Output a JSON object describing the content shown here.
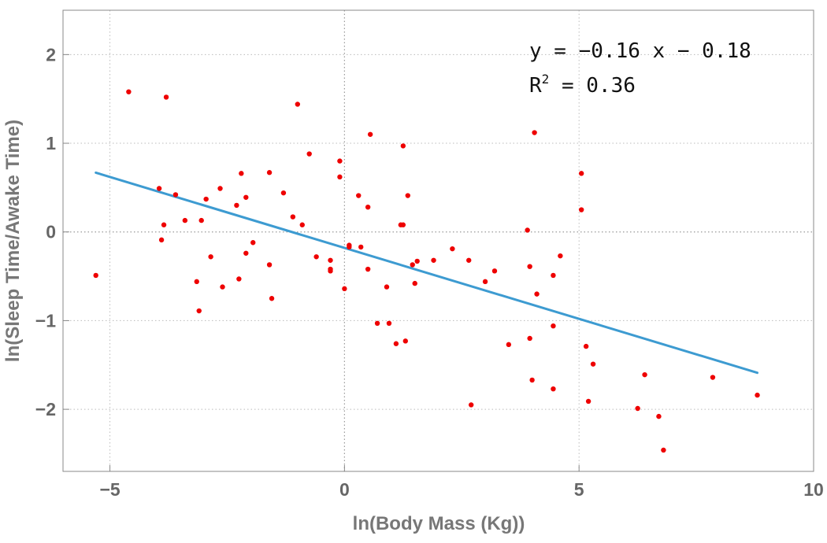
{
  "chart_data": {
    "type": "scatter",
    "title": "",
    "xlabel": "ln(Body Mass (Kg))",
    "ylabel": "ln(Sleep Time/Awake Time)",
    "xlim": [
      -6,
      10
    ],
    "ylim": [
      -2.7,
      2.5
    ],
    "x_ticks": [
      -5,
      0,
      5,
      10
    ],
    "x_tick_labels": [
      "−5",
      "0",
      "5",
      "10"
    ],
    "y_ticks": [
      -2,
      -1,
      0,
      1,
      2
    ],
    "y_tick_labels": [
      "−2",
      "−1",
      "0",
      "1",
      "2"
    ],
    "grid": true,
    "colors": {
      "points": "#ee0000",
      "fit_line": "#3d9bd1"
    },
    "fit": {
      "slope": -0.16,
      "intercept": -0.18,
      "x_range": [
        -5.3,
        8.8
      ]
    },
    "annotation": {
      "equation": "y = −0.16 x − 0.18",
      "r2_label": "R",
      "r2_sup": "2",
      "r2_value": " = 0.36"
    },
    "points": [
      {
        "x": -5.3,
        "y": -0.49
      },
      {
        "x": -4.6,
        "y": 1.58
      },
      {
        "x": -3.8,
        "y": 1.52
      },
      {
        "x": -3.95,
        "y": 0.49
      },
      {
        "x": -3.6,
        "y": 0.42
      },
      {
        "x": -3.85,
        "y": 0.08
      },
      {
        "x": -3.9,
        "y": -0.09
      },
      {
        "x": -3.4,
        "y": 0.13
      },
      {
        "x": -3.05,
        "y": 0.13
      },
      {
        "x": -2.95,
        "y": 0.37
      },
      {
        "x": -2.65,
        "y": 0.49
      },
      {
        "x": -2.85,
        "y": -0.28
      },
      {
        "x": -3.15,
        "y": -0.56
      },
      {
        "x": -3.1,
        "y": -0.89
      },
      {
        "x": -2.6,
        "y": -0.62
      },
      {
        "x": -2.3,
        "y": 0.3
      },
      {
        "x": -2.2,
        "y": 0.66
      },
      {
        "x": -2.1,
        "y": 0.39
      },
      {
        "x": -2.1,
        "y": -0.24
      },
      {
        "x": -1.95,
        "y": -0.12
      },
      {
        "x": -2.25,
        "y": -0.53
      },
      {
        "x": -1.6,
        "y": 0.67
      },
      {
        "x": -1.6,
        "y": -0.37
      },
      {
        "x": -1.55,
        "y": -0.75
      },
      {
        "x": -1.3,
        "y": 0.44
      },
      {
        "x": -1.1,
        "y": 0.17
      },
      {
        "x": -1.0,
        "y": 1.44
      },
      {
        "x": -0.9,
        "y": 0.08
      },
      {
        "x": -0.75,
        "y": 0.88
      },
      {
        "x": -0.6,
        "y": -0.28
      },
      {
        "x": -0.3,
        "y": -0.32
      },
      {
        "x": -0.3,
        "y": -0.42
      },
      {
        "x": -0.3,
        "y": -0.44
      },
      {
        "x": -0.1,
        "y": 0.8
      },
      {
        "x": -0.1,
        "y": 0.62
      },
      {
        "x": 0.0,
        "y": -0.64
      },
      {
        "x": 0.1,
        "y": -0.15
      },
      {
        "x": 0.1,
        "y": -0.17
      },
      {
        "x": 0.3,
        "y": 0.41
      },
      {
        "x": 0.35,
        "y": -0.17
      },
      {
        "x": 0.5,
        "y": 0.28
      },
      {
        "x": 0.5,
        "y": -0.42
      },
      {
        "x": 0.55,
        "y": 1.1
      },
      {
        "x": 0.7,
        "y": -1.03
      },
      {
        "x": 0.9,
        "y": -0.62
      },
      {
        "x": 0.95,
        "y": -1.03
      },
      {
        "x": 1.1,
        "y": -1.26
      },
      {
        "x": 1.2,
        "y": 0.08
      },
      {
        "x": 1.25,
        "y": 0.08
      },
      {
        "x": 1.25,
        "y": 0.97
      },
      {
        "x": 1.3,
        "y": -1.23
      },
      {
        "x": 1.35,
        "y": 0.41
      },
      {
        "x": 1.45,
        "y": -0.37
      },
      {
        "x": 1.5,
        "y": -0.58
      },
      {
        "x": 1.55,
        "y": -0.33
      },
      {
        "x": 1.9,
        "y": -0.32
      },
      {
        "x": 2.3,
        "y": -0.19
      },
      {
        "x": 2.65,
        "y": -0.32
      },
      {
        "x": 2.7,
        "y": -1.95
      },
      {
        "x": 3.0,
        "y": -0.56
      },
      {
        "x": 3.2,
        "y": -0.44
      },
      {
        "x": 3.5,
        "y": -1.27
      },
      {
        "x": 3.9,
        "y": 0.02
      },
      {
        "x": 3.95,
        "y": -0.39
      },
      {
        "x": 3.95,
        "y": -1.2
      },
      {
        "x": 4.0,
        "y": -1.67
      },
      {
        "x": 4.05,
        "y": 1.12
      },
      {
        "x": 4.1,
        "y": -0.7
      },
      {
        "x": 4.45,
        "y": -0.49
      },
      {
        "x": 4.45,
        "y": -1.06
      },
      {
        "x": 4.45,
        "y": -1.77
      },
      {
        "x": 4.6,
        "y": -0.27
      },
      {
        "x": 5.05,
        "y": 0.66
      },
      {
        "x": 5.05,
        "y": 0.25
      },
      {
        "x": 5.15,
        "y": -1.29
      },
      {
        "x": 5.2,
        "y": -1.91
      },
      {
        "x": 5.3,
        "y": -1.49
      },
      {
        "x": 6.25,
        "y": -1.99
      },
      {
        "x": 6.4,
        "y": -1.61
      },
      {
        "x": 6.7,
        "y": -2.08
      },
      {
        "x": 6.8,
        "y": -2.46
      },
      {
        "x": 7.85,
        "y": -1.64
      },
      {
        "x": 8.8,
        "y": -1.84
      }
    ]
  }
}
